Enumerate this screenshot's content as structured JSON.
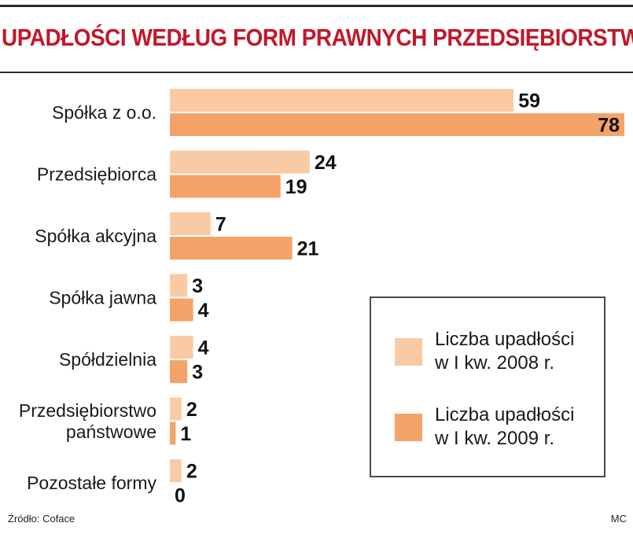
{
  "title": "UPADŁOŚCI WEDŁUG FORM PRAWNYCH PRZEDSIĘBIORSTW",
  "source": "Źródło: Coface",
  "credit": "MC",
  "colors": {
    "series_2008": "#f9caa4",
    "series_2009": "#f4a368",
    "title": "#c0182a"
  },
  "legend": {
    "items": [
      {
        "label_line1": "Liczba upadłości",
        "label_line2": "w I kw. 2008 r."
      },
      {
        "label_line1": "Liczba upadłości",
        "label_line2": "w I kw. 2009 r."
      }
    ]
  },
  "chart_data": {
    "type": "bar",
    "orientation": "horizontal",
    "categories": [
      [
        "Spółka z o.o."
      ],
      [
        "Przedsiębiorca"
      ],
      [
        "Spółka akcyjna"
      ],
      [
        "Spółka jawna"
      ],
      [
        "Spółdzielnia"
      ],
      [
        "Przedsiębiorstwo",
        "państwowe"
      ],
      [
        "Pozostałe formy"
      ]
    ],
    "series": [
      {
        "name": "Liczba upadłości w I kw. 2008 r.",
        "values": [
          59,
          24,
          7,
          3,
          4,
          2,
          2
        ]
      },
      {
        "name": "Liczba upadłości w I kw. 2009 r.",
        "values": [
          78,
          19,
          21,
          4,
          3,
          1,
          0
        ]
      }
    ],
    "title": "UPADŁOŚCI WEDŁUG FORM PRAWNYCH PRZEDSIĘBIORSTW",
    "xlim": [
      0,
      78
    ],
    "grid": false,
    "legend_position": "bottom-right"
  }
}
